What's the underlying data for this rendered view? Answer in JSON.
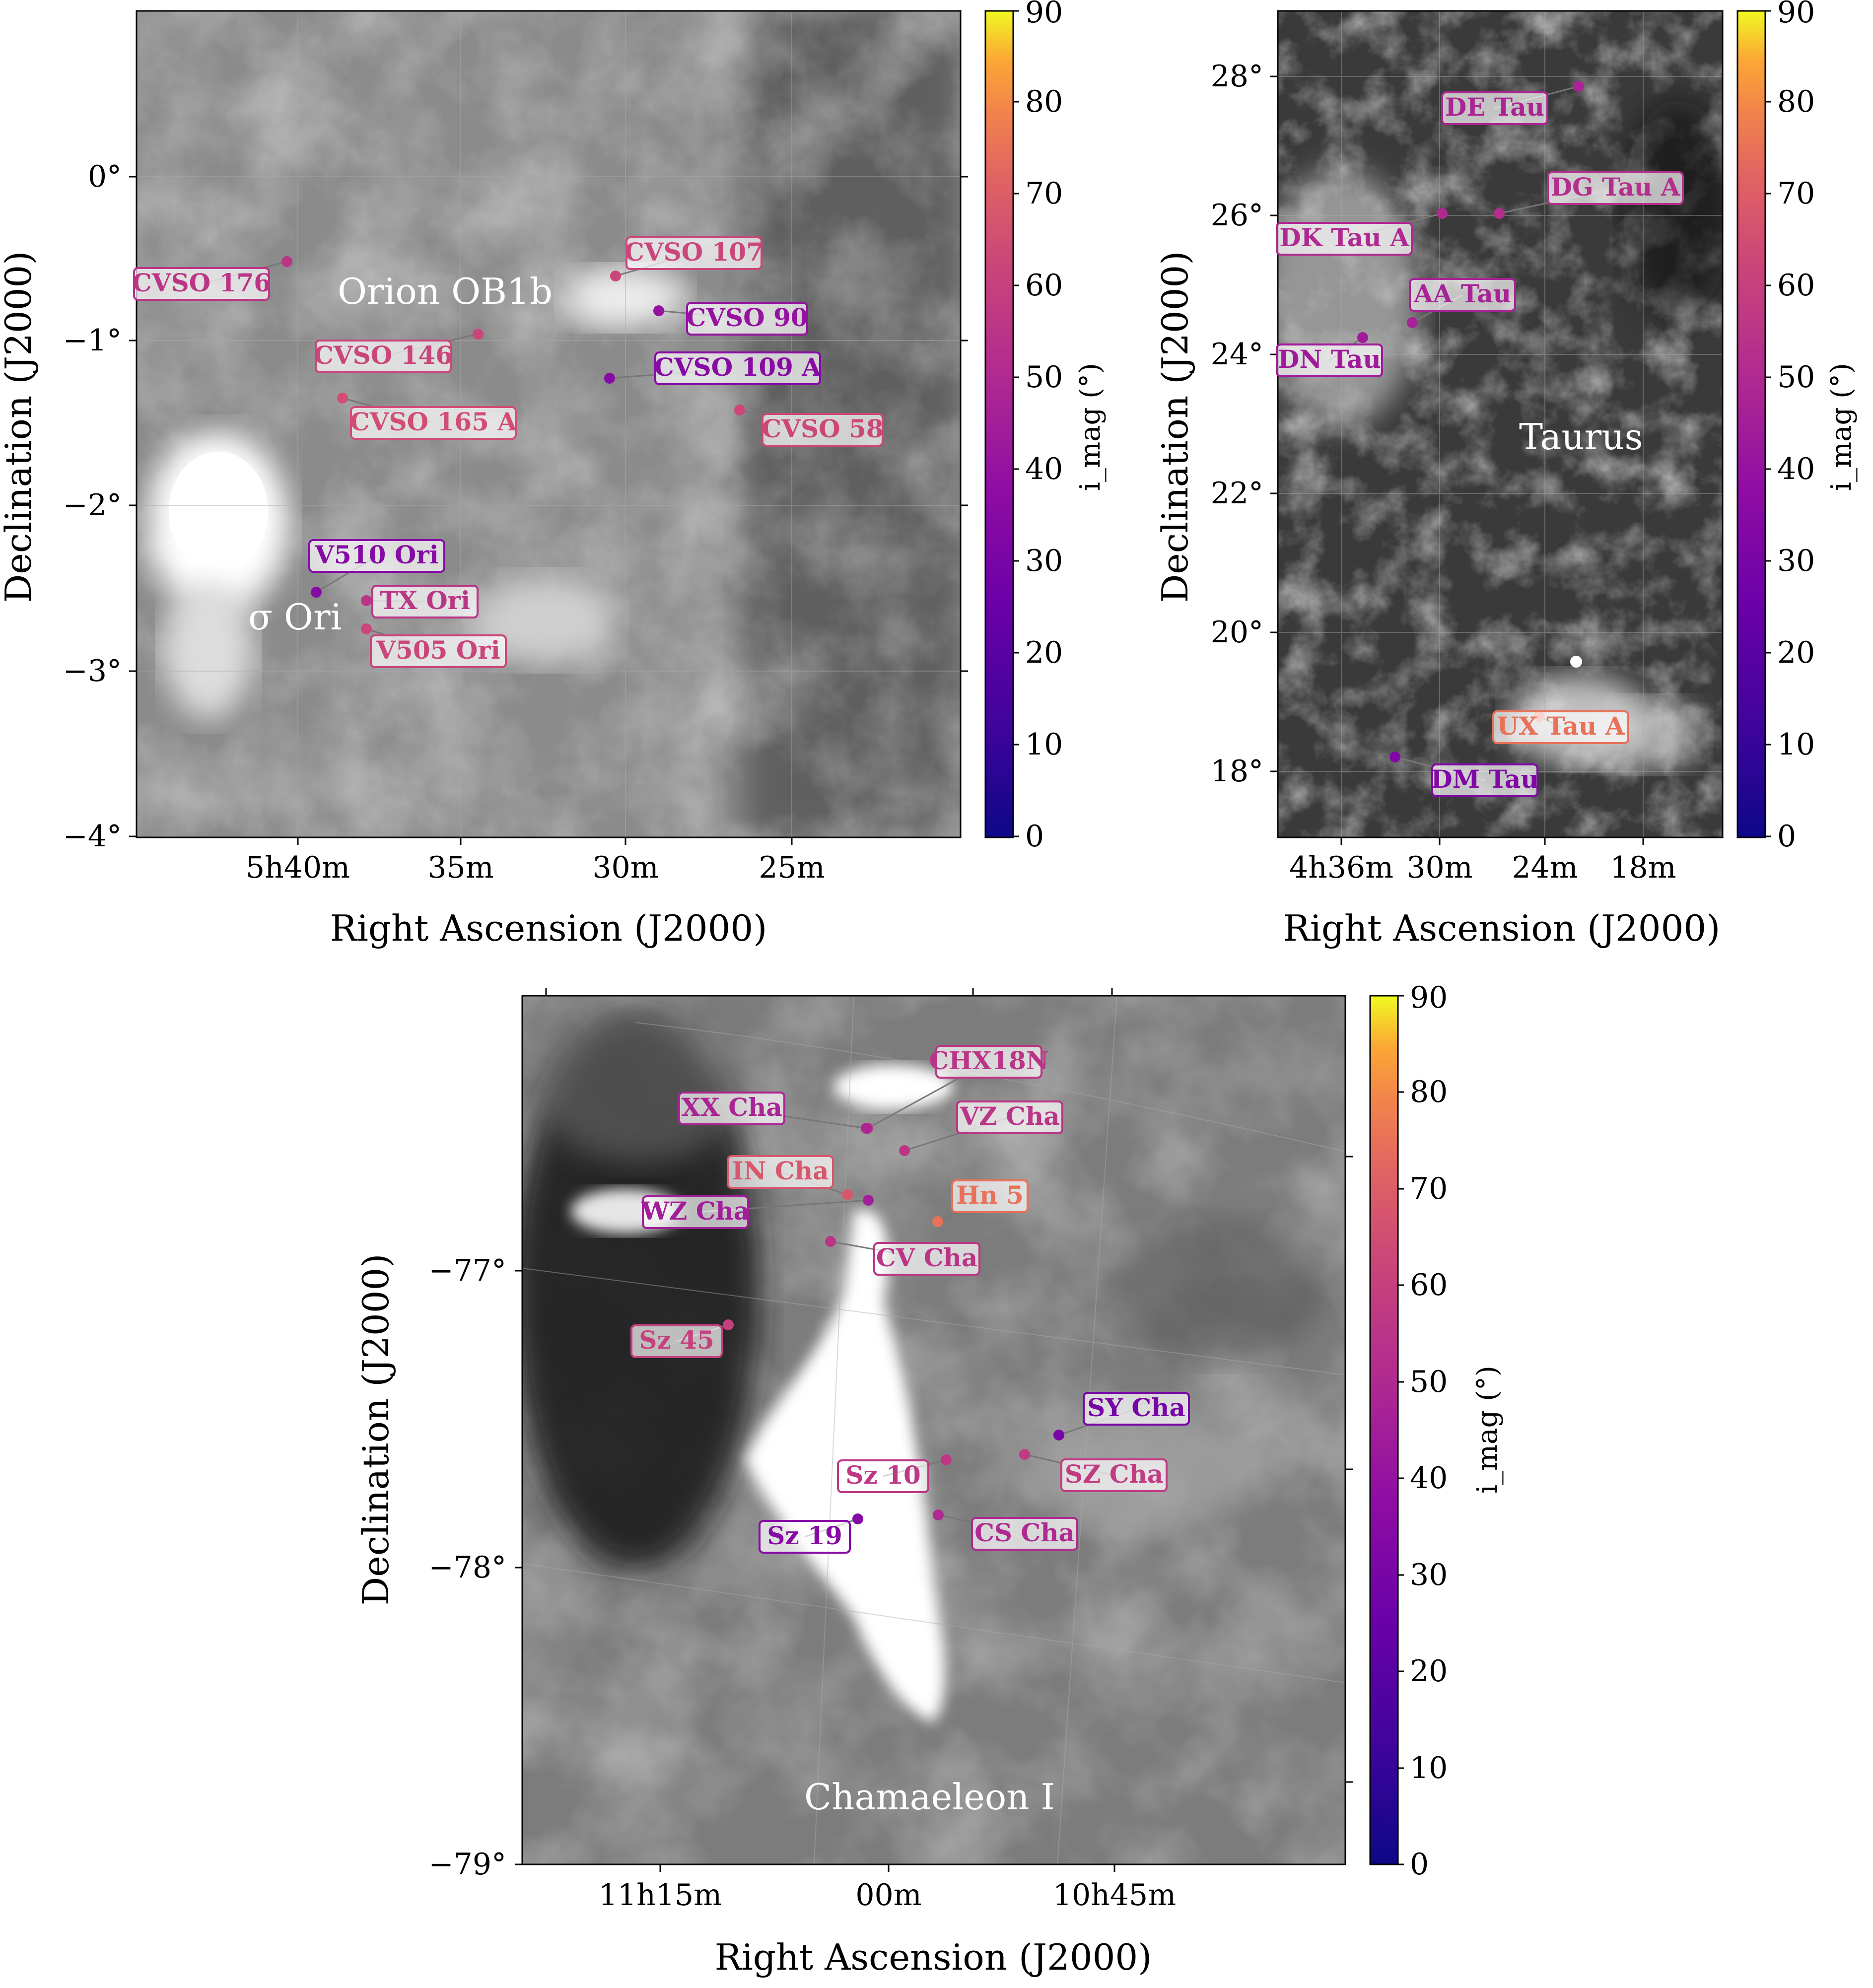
{
  "panels": [
    {
      "id": "orion",
      "region_name": "Orion OB1b",
      "sub_region_name": "σ Ori",
      "xlabel": "Right Ascension (J2000)",
      "ylabel": "Declination (J2000)",
      "x_ticks": [
        "5h40m",
        "35m",
        "30m",
        "25m"
      ],
      "y_ticks": [
        "0°",
        "−1°",
        "−2°",
        "−3°",
        "−4°"
      ],
      "stars": [
        {
          "name": "CVSO 176",
          "imag": 55
        },
        {
          "name": "CVSO 107",
          "imag": 62
        },
        {
          "name": "CVSO 146",
          "imag": 62
        },
        {
          "name": "CVSO 90",
          "imag": 40
        },
        {
          "name": "CVSO 109 A",
          "imag": 35
        },
        {
          "name": "CVSO 165 A",
          "imag": 65
        },
        {
          "name": "CVSO 58",
          "imag": 63
        },
        {
          "name": "V510 Ori",
          "imag": 35
        },
        {
          "name": "TX Ori",
          "imag": 55
        },
        {
          "name": "V505 Ori",
          "imag": 62
        }
      ]
    },
    {
      "id": "taurus",
      "region_name": "Taurus",
      "xlabel": "Right Ascension (J2000)",
      "ylabel": "Declination (J2000)",
      "x_ticks": [
        "4h36m",
        "30m",
        "24m",
        "18m"
      ],
      "y_ticks": [
        "28°",
        "26°",
        "24°",
        "22°",
        "20°",
        "18°"
      ],
      "stars": [
        {
          "name": "DE Tau",
          "imag": 48
        },
        {
          "name": "DG Tau A",
          "imag": 52
        },
        {
          "name": "DK Tau A",
          "imag": 50
        },
        {
          "name": "AA Tau",
          "imag": 47
        },
        {
          "name": "DN Tau",
          "imag": 44
        },
        {
          "name": "UX Tau A",
          "imag": 75
        },
        {
          "name": "DM Tau",
          "imag": 33
        }
      ]
    },
    {
      "id": "chamaeleon",
      "region_name": "Chamaeleon I",
      "xlabel": "Right Ascension (J2000)",
      "ylabel": "Declination (J2000)",
      "x_ticks": [
        "11h15m",
        "00m",
        "10h45m"
      ],
      "y_ticks": [
        "−77°",
        "−78°",
        "−79°"
      ],
      "stars": [
        {
          "name": "CHX18N",
          "imag": 55
        },
        {
          "name": "XX Cha",
          "imag": 48
        },
        {
          "name": "VZ Cha",
          "imag": 55
        },
        {
          "name": "IN Cha",
          "imag": 68
        },
        {
          "name": "Hn 5",
          "imag": 75
        },
        {
          "name": "WZ Cha",
          "imag": 45
        },
        {
          "name": "CV Cha",
          "imag": 55
        },
        {
          "name": "Sz 45",
          "imag": 60
        },
        {
          "name": "SY Cha",
          "imag": 30
        },
        {
          "name": "Sz 10",
          "imag": 56
        },
        {
          "name": "SZ Cha",
          "imag": 58
        },
        {
          "name": "Sz 19",
          "imag": 35
        },
        {
          "name": "CS Cha",
          "imag": 50
        }
      ]
    }
  ],
  "colorbar": {
    "label": "i_mag (°)",
    "ticks": [
      "0",
      "10",
      "20",
      "30",
      "40",
      "50",
      "60",
      "70",
      "80",
      "90"
    ],
    "range": [
      0,
      90
    ],
    "colormap": "plasma"
  }
}
